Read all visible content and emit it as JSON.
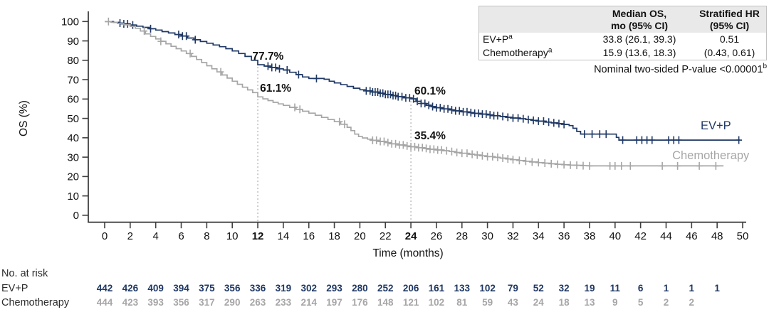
{
  "figure": {
    "stats_table": {
      "headers": [
        {
          "line1": "Median OS,",
          "line2": "mo (95% CI)"
        },
        {
          "line1": "Stratified HR",
          "line2": "(95% CI)"
        }
      ],
      "rows": [
        {
          "label": "EV+P",
          "sup": "a",
          "median": "33.8 (26.1, 39.3)",
          "hr": "0.51"
        },
        {
          "label": "Chemotherapy",
          "sup": "a",
          "median": "15.9 (13.6, 18.3)",
          "hr": "(0.43, 0.61)"
        }
      ]
    },
    "pvalue_note": {
      "text": "Nominal two-sided P-value <0.00001",
      "sup": "b"
    },
    "risk_table": {
      "title": "No. at risk",
      "start_month": 0,
      "month_step": 2,
      "rows": [
        {
          "label": "EV+P",
          "color": "#1F3864",
          "values": [
            442,
            426,
            409,
            394,
            375,
            356,
            336,
            319,
            302,
            293,
            280,
            252,
            206,
            161,
            133,
            102,
            79,
            52,
            32,
            19,
            11,
            6,
            1,
            1,
            1
          ]
        },
        {
          "label": "Chemotherapy",
          "color": "#A6A6A6",
          "values": [
            444,
            423,
            393,
            356,
            317,
            290,
            263,
            233,
            214,
            197,
            176,
            148,
            121,
            102,
            81,
            59,
            43,
            24,
            18,
            13,
            9,
            5,
            2,
            2
          ]
        }
      ]
    }
  },
  "chart_data": {
    "type": "line",
    "subtype": "kaplan-meier-step",
    "title": "",
    "xlabel": "Time (months)",
    "ylabel": "OS (%)",
    "xlim": [
      0,
      50
    ],
    "ylim": [
      0,
      100
    ],
    "xticks": [
      0,
      2,
      4,
      6,
      8,
      10,
      12,
      14,
      16,
      18,
      20,
      22,
      24,
      26,
      28,
      30,
      32,
      34,
      36,
      38,
      40,
      42,
      44,
      46,
      48,
      50
    ],
    "yticks": [
      0,
      10,
      20,
      30,
      40,
      50,
      60,
      70,
      80,
      90,
      100
    ],
    "bold_xticks": [
      12,
      24
    ],
    "grid": false,
    "reference_lines": [
      {
        "x": 12
      },
      {
        "x": 24
      }
    ],
    "annotations": [
      {
        "text": "77.7%",
        "x_month": 12.8,
        "y_pct": 80.3
      },
      {
        "text": "61.1%",
        "x_month": 13.4,
        "y_pct": 63.8
      },
      {
        "text": "60.1%",
        "x_month": 25.5,
        "y_pct": 62.4
      },
      {
        "text": "35.4%",
        "x_month": 25.5,
        "y_pct": 39.2
      }
    ],
    "series": [
      {
        "name": "EV+P",
        "color": "#1F3864",
        "end_label": {
          "text": "EV+P",
          "x_month": 47.9,
          "y_pct": 44.4
        },
        "key_values": {
          "12_mo": 77.7,
          "24_mo": 60.1
        },
        "points": [
          [
            0,
            100
          ],
          [
            0.7,
            99.6
          ],
          [
            1.1,
            99.2
          ],
          [
            1.5,
            98.8
          ],
          [
            2,
            98.2
          ],
          [
            2.5,
            97.6
          ],
          [
            3,
            97
          ],
          [
            3.5,
            96.3
          ],
          [
            4,
            95.6
          ],
          [
            4.5,
            94.8
          ],
          [
            5,
            94.1
          ],
          [
            5.5,
            93.3
          ],
          [
            6,
            92.5
          ],
          [
            6.5,
            91.5
          ],
          [
            7,
            90.6
          ],
          [
            7.5,
            89.7
          ],
          [
            8,
            88.8
          ],
          [
            8.5,
            87.9
          ],
          [
            9,
            87
          ],
          [
            9.5,
            86
          ],
          [
            10,
            84.8
          ],
          [
            10.5,
            83.5
          ],
          [
            11,
            82
          ],
          [
            11.5,
            80
          ],
          [
            12,
            77.7
          ],
          [
            12.5,
            77
          ],
          [
            13,
            76.3
          ],
          [
            13.5,
            75.6
          ],
          [
            14,
            75
          ],
          [
            14.5,
            73.8
          ],
          [
            15,
            72.6
          ],
          [
            15.5,
            71.4
          ],
          [
            16,
            70.6
          ],
          [
            17.2,
            70.2
          ],
          [
            17.6,
            69.2
          ],
          [
            18,
            68.3
          ],
          [
            18.5,
            67.4
          ],
          [
            19,
            66.5
          ],
          [
            19.5,
            65.6
          ],
          [
            20,
            64.8
          ],
          [
            20.5,
            64.2
          ],
          [
            21,
            63.6
          ],
          [
            21.5,
            63
          ],
          [
            22,
            62.4
          ],
          [
            22.5,
            61.8
          ],
          [
            23,
            61.2
          ],
          [
            23.5,
            60.6
          ],
          [
            24,
            60.1
          ],
          [
            24.4,
            58.8
          ],
          [
            24.8,
            57.7
          ],
          [
            25.2,
            56.8
          ],
          [
            25.6,
            56.1
          ],
          [
            26,
            55.5
          ],
          [
            26.5,
            54.9
          ],
          [
            27,
            54.4
          ],
          [
            27.5,
            53.9
          ],
          [
            28,
            53.4
          ],
          [
            28.5,
            53
          ],
          [
            29,
            52.6
          ],
          [
            29.5,
            52.2
          ],
          [
            30,
            51.8
          ],
          [
            30.5,
            51.4
          ],
          [
            31,
            51
          ],
          [
            31.5,
            50.6
          ],
          [
            32,
            50.2
          ],
          [
            32.5,
            49.8
          ],
          [
            33,
            49.4
          ],
          [
            33.5,
            49
          ],
          [
            34,
            48.6
          ],
          [
            34.5,
            48.1
          ],
          [
            35,
            47.7
          ],
          [
            35.5,
            47.3
          ],
          [
            36,
            46.9
          ],
          [
            36.4,
            46.3
          ],
          [
            36.7,
            44.9
          ],
          [
            37,
            43.3
          ],
          [
            37.3,
            41.9
          ],
          [
            39.9,
            41.9
          ],
          [
            40.1,
            40.2
          ],
          [
            40.3,
            38.8
          ],
          [
            49.8,
            38.8
          ]
        ],
        "censor_months": [
          1.2,
          1.5,
          1.8,
          2.2,
          3.6,
          5.8,
          6.1,
          6.4,
          7.1,
          12.8,
          13.1,
          13.4,
          13.7,
          14.3,
          15.2,
          16.6,
          20.5,
          20.8,
          21.0,
          21.2,
          21.4,
          21.6,
          21.8,
          22.0,
          22.2,
          22.4,
          22.6,
          22.8,
          23.0,
          23.3,
          23.6,
          23.9,
          24.2,
          24.5,
          24.8,
          25.1,
          25.4,
          25.7,
          26.0,
          26.3,
          26.6,
          26.9,
          27.2,
          27.5,
          27.8,
          28.1,
          28.4,
          28.7,
          29.0,
          29.3,
          29.6,
          29.9,
          30.2,
          30.5,
          30.8,
          31.2,
          31.6,
          32.0,
          32.4,
          32.8,
          33.2,
          33.6,
          34.0,
          34.4,
          34.8,
          35.2,
          35.6,
          36.0,
          37.6,
          38.2,
          38.8,
          39.3,
          40.6,
          41.7,
          42.1,
          42.5,
          42.9,
          44.2,
          44.6,
          45.0,
          49.7
        ]
      },
      {
        "name": "Chemotherapy",
        "color": "#A6A6A6",
        "end_label": {
          "text": "Chemotherapy",
          "x_month": 47.5,
          "y_pct": 29.0
        },
        "key_values": {
          "12_mo": 61.1,
          "24_mo": 35.4
        },
        "points": [
          [
            0,
            100
          ],
          [
            0.5,
            99.6
          ],
          [
            1,
            99
          ],
          [
            1.5,
            98.3
          ],
          [
            2,
            97.5
          ],
          [
            2.4,
            96.5
          ],
          [
            2.8,
            95.1
          ],
          [
            3.2,
            93.6
          ],
          [
            3.6,
            92.3
          ],
          [
            4,
            91
          ],
          [
            4.4,
            89.8
          ],
          [
            4.8,
            88.5
          ],
          [
            5.2,
            87.2
          ],
          [
            5.6,
            86
          ],
          [
            6,
            84.8
          ],
          [
            6.4,
            83.5
          ],
          [
            6.8,
            82
          ],
          [
            7.2,
            80.4
          ],
          [
            7.6,
            78.8
          ],
          [
            8,
            77.2
          ],
          [
            8.4,
            75.6
          ],
          [
            8.8,
            74
          ],
          [
            9.2,
            72.4
          ],
          [
            9.6,
            70.8
          ],
          [
            10,
            69.2
          ],
          [
            10.4,
            67.6
          ],
          [
            10.8,
            66.1
          ],
          [
            11.2,
            64.7
          ],
          [
            11.6,
            63.3
          ],
          [
            12,
            61.1
          ],
          [
            12.4,
            60.1
          ],
          [
            12.8,
            59.2
          ],
          [
            13.2,
            58.3
          ],
          [
            13.6,
            57.5
          ],
          [
            14,
            56.7
          ],
          [
            14.5,
            55.7
          ],
          [
            15,
            54.7
          ],
          [
            15.5,
            53.7
          ],
          [
            16,
            52.7
          ],
          [
            16.5,
            51.6
          ],
          [
            17,
            50.5
          ],
          [
            17.5,
            49.4
          ],
          [
            18,
            48.3
          ],
          [
            18.5,
            47
          ],
          [
            19,
            45.4
          ],
          [
            19.3,
            43.7
          ],
          [
            19.6,
            41.9
          ],
          [
            19.9,
            40.6
          ],
          [
            20.2,
            39.9
          ],
          [
            20.6,
            39.3
          ],
          [
            21,
            38.7
          ],
          [
            21.5,
            38.1
          ],
          [
            22,
            37.5
          ],
          [
            22.5,
            36.9
          ],
          [
            23,
            36.3
          ],
          [
            23.5,
            35.8
          ],
          [
            24,
            35.4
          ],
          [
            24.5,
            34.9
          ],
          [
            25,
            34.5
          ],
          [
            25.5,
            34.1
          ],
          [
            26,
            33.7
          ],
          [
            26.5,
            33.3
          ],
          [
            27,
            32.9
          ],
          [
            27.5,
            32.4
          ],
          [
            28,
            32
          ],
          [
            28.5,
            31.5
          ],
          [
            29,
            31.1
          ],
          [
            29.5,
            30.7
          ],
          [
            30,
            30.3
          ],
          [
            30.5,
            29.9
          ],
          [
            31,
            29.5
          ],
          [
            31.5,
            29.1
          ],
          [
            32,
            28.7
          ],
          [
            32.5,
            28.3
          ],
          [
            33,
            27.9
          ],
          [
            33.5,
            27.5
          ],
          [
            34,
            27.2
          ],
          [
            34.5,
            26.9
          ],
          [
            35,
            26.6
          ],
          [
            35.5,
            26.3
          ],
          [
            36,
            26.1
          ],
          [
            36.5,
            25.9
          ],
          [
            37,
            25.8
          ],
          [
            37.5,
            25.6
          ],
          [
            38,
            25.5
          ],
          [
            48.5,
            25.5
          ]
        ],
        "censor_months": [
          0.3,
          3.1,
          4.4,
          6.7,
          9.1,
          14.9,
          15.3,
          18.4,
          18.8,
          21.0,
          21.3,
          21.6,
          21.9,
          22.2,
          22.5,
          22.8,
          23.1,
          23.4,
          23.7,
          24.0,
          24.3,
          24.6,
          24.9,
          25.2,
          25.5,
          25.8,
          26.1,
          26.4,
          26.8,
          27.2,
          27.6,
          28.0,
          28.4,
          28.8,
          29.2,
          29.6,
          30.0,
          30.4,
          30.8,
          31.2,
          31.6,
          32.0,
          32.5,
          33.0,
          33.5,
          34.0,
          34.5,
          35.0,
          35.5,
          36.0,
          36.5,
          37.0,
          37.5,
          38.0,
          39.6,
          40.0,
          40.5,
          41.2,
          43.7,
          44.9,
          46.6,
          47.9
        ]
      }
    ],
    "colors": {
      "ev_p": "#1F3864",
      "chemotherapy": "#A6A6A6",
      "axis": "#404040",
      "reference_line": "#9a9a9a"
    }
  }
}
